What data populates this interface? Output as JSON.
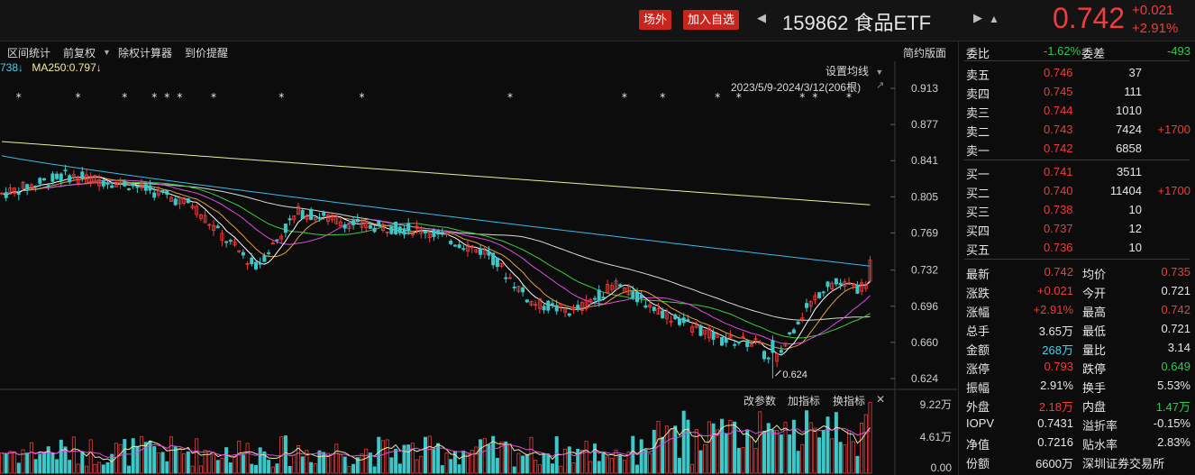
{
  "header": {
    "btn_offexchange": "场外",
    "btn_watchlist": "加入自选",
    "nav_prev": "◀",
    "nav_next": "▶",
    "title": "159862 食品ETF",
    "bell": "▲",
    "price": "0.742",
    "change": "+0.021",
    "change_pct": "+2.91%"
  },
  "toolbar": {
    "items": [
      "区间统计",
      "前复权",
      "▼",
      "除权计算器",
      "到价提醒"
    ],
    "simple_view": "简约版面"
  },
  "ma_legend": {
    "ma_a": "738↓",
    "ma_b": "MA250:0.797↓"
  },
  "chart_controls": {
    "set_ma": "设置均线",
    "set_ma_arrow": "▼",
    "range": "2023/5/9-2024/3/12(206根)",
    "pin": "↗"
  },
  "volume_controls": [
    "改参数",
    "加指标",
    "换指标",
    "✕"
  ],
  "chart_data": {
    "type": "candlestick",
    "price_axis": {
      "ticks": [
        0.913,
        0.877,
        0.841,
        0.805,
        0.769,
        0.732,
        0.696,
        0.66,
        0.624
      ],
      "range": [
        0.615,
        0.922
      ]
    },
    "volume_axis": {
      "ticks": [
        "9.22万",
        "4.61万",
        "0.00"
      ],
      "max": 92200
    },
    "low_annotation": "0.624",
    "low_value": 0.624,
    "marker": "*",
    "event_markers_at_bar": [
      4,
      18,
      29,
      36,
      39,
      42,
      50,
      66,
      85,
      120,
      147,
      156,
      169,
      174,
      189,
      192,
      200
    ],
    "bar_count": 206,
    "last_close": 0.742,
    "ma250_last": 0.797,
    "grid": false,
    "legend": "top-left"
  },
  "side": {
    "webi_label": "委比",
    "webi_value": "-1.62%",
    "weicha_label": "委差",
    "weicha_value": "-493",
    "asks": [
      {
        "label": "卖五",
        "price": "0.746",
        "vol": "37",
        "chg": ""
      },
      {
        "label": "卖四",
        "price": "0.745",
        "vol": "111",
        "chg": ""
      },
      {
        "label": "卖三",
        "price": "0.744",
        "vol": "1010",
        "chg": ""
      },
      {
        "label": "卖二",
        "price": "0.743",
        "vol": "7424",
        "chg": "+1700"
      },
      {
        "label": "卖一",
        "price": "0.742",
        "vol": "6858",
        "chg": ""
      }
    ],
    "bids": [
      {
        "label": "买一",
        "price": "0.741",
        "vol": "3511",
        "chg": ""
      },
      {
        "label": "买二",
        "price": "0.740",
        "vol": "11404",
        "chg": "+1700"
      },
      {
        "label": "买三",
        "price": "0.738",
        "vol": "10",
        "chg": ""
      },
      {
        "label": "买四",
        "price": "0.737",
        "vol": "12",
        "chg": ""
      },
      {
        "label": "买五",
        "price": "0.736",
        "vol": "10",
        "chg": ""
      }
    ],
    "stats": [
      {
        "l1": "最新",
        "v1": "0.742",
        "c1": "red",
        "l2": "均价",
        "v2": "0.735",
        "c2": "red"
      },
      {
        "l1": "涨跌",
        "v1": "+0.021",
        "c1": "red",
        "l2": "今开",
        "v2": "0.721",
        "c2": "white"
      },
      {
        "l1": "涨幅",
        "v1": "+2.91%",
        "c1": "red",
        "l2": "最高",
        "v2": "0.742",
        "c2": "red"
      },
      {
        "l1": "总手",
        "v1": "3.65万",
        "c1": "white",
        "l2": "最低",
        "v2": "0.721",
        "c2": "white"
      },
      {
        "l1": "金额",
        "v1": "268万",
        "c1": "cyan",
        "l2": "量比",
        "v2": "3.14",
        "c2": "white"
      },
      {
        "l1": "涨停",
        "v1": "0.793",
        "c1": "red",
        "l2": "跌停",
        "v2": "0.649",
        "c2": "green"
      },
      {
        "l1": "振幅",
        "v1": "2.91%",
        "c1": "white",
        "l2": "换手",
        "v2": "5.53%",
        "c2": "white"
      },
      {
        "l1": "外盘",
        "v1": "2.18万",
        "c1": "red",
        "l2": "内盘",
        "v2": "1.47万",
        "c2": "green"
      },
      {
        "l1": "IOPV",
        "v1": "0.7431",
        "c1": "white",
        "l2": "溢折率",
        "v2": "-0.15%",
        "c2": "white"
      },
      {
        "l1": "净值",
        "v1": "0.7216",
        "c1": "white",
        "l2": "贴水率",
        "v2": "2.83%",
        "c2": "white"
      },
      {
        "l1": "份额",
        "v1": "6600万",
        "c1": "white",
        "l2": "深圳证券交易所",
        "v2": "",
        "c2": "white"
      }
    ]
  },
  "colors": {
    "up": "#f03c3c",
    "down": "#3cc8c8",
    "ma_yellow": "#ecec9c",
    "ma_cyan": "#3cb8e8",
    "ma_pink": "#e04ce0",
    "ma_green": "#3ccc3c",
    "ma_white": "#d8d8d8",
    "ma_orange": "#e8a040"
  }
}
